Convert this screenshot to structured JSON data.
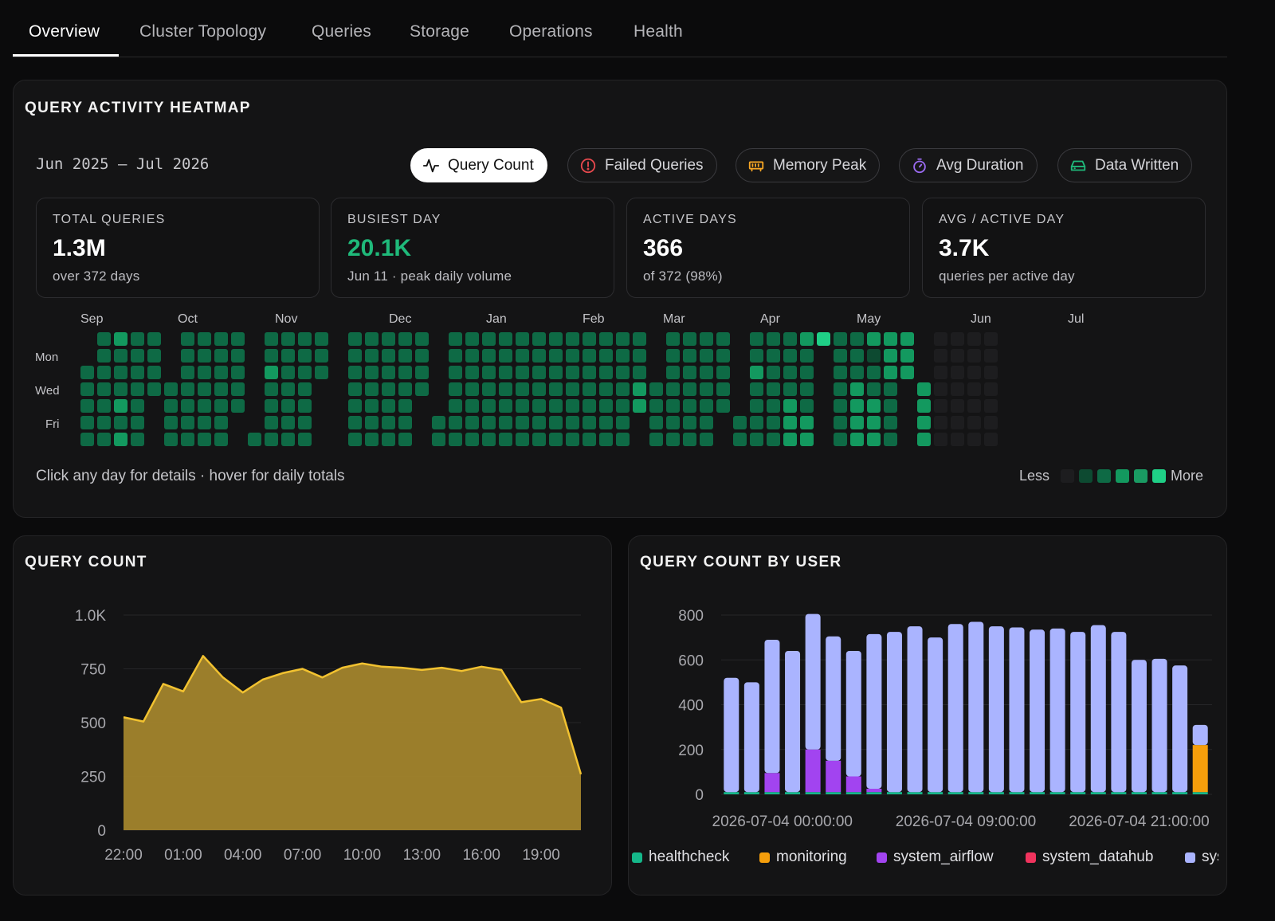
{
  "tabs": [
    "Overview",
    "Cluster Topology",
    "Queries",
    "Storage",
    "Operations",
    "Health"
  ],
  "heatmap_panel": {
    "title": "QUERY ACTIVITY HEATMAP",
    "range": "Jun 2025 – Jul 2026",
    "metrics": [
      {
        "label": "Query Count",
        "icon": "activity-icon",
        "active": true,
        "color": "#111111"
      },
      {
        "label": "Failed Queries",
        "icon": "alert-circle-icon",
        "active": false,
        "color": "#e5484d"
      },
      {
        "label": "Memory Peak",
        "icon": "memory-icon",
        "active": false,
        "color": "#f5a524"
      },
      {
        "label": "Avg Duration",
        "icon": "stopwatch-icon",
        "active": false,
        "color": "#9b6bf2"
      },
      {
        "label": "Data Written",
        "icon": "hard-drive-icon",
        "active": false,
        "color": "#1fb97a"
      }
    ],
    "stats": [
      {
        "label": "TOTAL QUERIES",
        "value": "1.3M",
        "sub": "over 372 days",
        "accent": false
      },
      {
        "label": "BUSIEST DAY",
        "value": "20.1K",
        "sub": "Jun 11 · peak daily volume",
        "accent": true
      },
      {
        "label": "ACTIVE DAYS",
        "value": "366",
        "sub": "of 372 (98%)",
        "accent": false
      },
      {
        "label": "AVG / ACTIVE DAY",
        "value": "3.7K",
        "sub": "queries per active day",
        "accent": false
      }
    ],
    "months": [
      "Sep",
      "Oct",
      "Nov",
      "Dec",
      "Jan",
      "Feb",
      "Mar",
      "Apr",
      "May",
      "Jun",
      "Jul"
    ],
    "day_labels": [
      "Mon",
      "Wed",
      "Fri"
    ],
    "hint": "Click any day for details · hover for daily totals",
    "legend_less": "Less",
    "legend_more": "More",
    "levels": [
      "#1d1d1f",
      "#0d4a31",
      "#0e6a45",
      "#13995f",
      "#1fcf86"
    ],
    "weeks": [
      [
        -1,
        -1,
        2,
        2,
        2,
        2,
        2
      ],
      [
        2,
        2,
        2,
        2,
        2,
        2,
        2
      ],
      [
        3,
        2,
        2,
        2,
        3,
        2,
        3
      ],
      [
        2,
        2,
        2,
        2,
        2,
        2,
        2
      ],
      [
        2,
        2,
        2,
        2,
        -1,
        -1,
        -1
      ],
      [
        -1,
        -1,
        -1,
        2,
        2,
        2,
        2
      ],
      [
        2,
        2,
        2,
        2,
        2,
        2,
        2
      ],
      [
        2,
        2,
        2,
        2,
        2,
        2,
        2
      ],
      [
        2,
        2,
        2,
        2,
        2,
        2,
        2
      ],
      [
        2,
        2,
        2,
        2,
        2,
        -1,
        -1
      ],
      [
        -1,
        -1,
        -1,
        -1,
        -1,
        -1,
        2
      ],
      [
        2,
        2,
        3,
        2,
        2,
        2,
        2
      ],
      [
        2,
        2,
        2,
        2,
        2,
        2,
        2
      ],
      [
        2,
        2,
        2,
        2,
        2,
        2,
        2
      ],
      [
        2,
        2,
        2,
        -1,
        -1,
        -1,
        -1
      ],
      [
        -1,
        -1,
        -1,
        -1,
        -1,
        -1,
        -1
      ],
      [
        2,
        2,
        2,
        2,
        2,
        2,
        2
      ],
      [
        2,
        2,
        2,
        2,
        2,
        2,
        2
      ],
      [
        2,
        2,
        2,
        2,
        2,
        2,
        2
      ],
      [
        2,
        2,
        2,
        2,
        2,
        2,
        2
      ],
      [
        2,
        2,
        2,
        2,
        -1,
        -1,
        -1
      ],
      [
        -1,
        -1,
        -1,
        -1,
        -1,
        2,
        2
      ],
      [
        2,
        2,
        2,
        2,
        2,
        2,
        2
      ],
      [
        2,
        2,
        2,
        2,
        2,
        2,
        2
      ],
      [
        2,
        2,
        2,
        2,
        2,
        2,
        2
      ],
      [
        2,
        2,
        2,
        2,
        2,
        2,
        2
      ],
      [
        2,
        2,
        2,
        2,
        2,
        2,
        2
      ],
      [
        2,
        2,
        2,
        2,
        2,
        2,
        2
      ],
      [
        2,
        2,
        2,
        2,
        2,
        2,
        2
      ],
      [
        2,
        2,
        2,
        2,
        2,
        2,
        2
      ],
      [
        2,
        2,
        2,
        2,
        2,
        2,
        2
      ],
      [
        2,
        2,
        2,
        2,
        2,
        2,
        2
      ],
      [
        2,
        2,
        2,
        2,
        2,
        2,
        2
      ],
      [
        2,
        2,
        2,
        3,
        3,
        -1,
        -1
      ],
      [
        -1,
        -1,
        -1,
        2,
        2,
        2,
        2
      ],
      [
        2,
        2,
        2,
        2,
        2,
        2,
        2
      ],
      [
        2,
        2,
        2,
        2,
        2,
        2,
        2
      ],
      [
        2,
        2,
        2,
        2,
        2,
        2,
        2
      ],
      [
        2,
        2,
        2,
        2,
        2,
        -1,
        -1
      ],
      [
        -1,
        -1,
        -1,
        -1,
        -1,
        2,
        2
      ],
      [
        2,
        2,
        3,
        2,
        2,
        2,
        2
      ],
      [
        2,
        2,
        2,
        2,
        2,
        2,
        2
      ],
      [
        2,
        2,
        2,
        2,
        3,
        3,
        3
      ],
      [
        3,
        2,
        2,
        2,
        2,
        3,
        3
      ],
      [
        4,
        -1,
        -1,
        -1,
        -1,
        -1,
        -1
      ],
      [
        2,
        2,
        2,
        2,
        2,
        2,
        2
      ],
      [
        2,
        2,
        2,
        3,
        3,
        3,
        3
      ],
      [
        3,
        1,
        2,
        2,
        3,
        3,
        3
      ],
      [
        3,
        3,
        3,
        2,
        2,
        2,
        2
      ],
      [
        3,
        3,
        3,
        -1,
        -1,
        -1,
        -1
      ],
      [
        -1,
        -1,
        -1,
        3,
        3,
        3,
        3
      ],
      [
        0,
        0,
        0,
        0,
        0,
        0,
        0
      ],
      [
        0,
        0,
        0,
        0,
        0,
        0,
        0
      ],
      [
        0,
        0,
        0,
        0,
        0,
        0,
        0
      ],
      [
        0,
        0,
        0,
        0,
        0,
        0,
        0
      ]
    ]
  },
  "query_count_panel": {
    "title": "QUERY COUNT",
    "chart_data": {
      "type": "area",
      "title": "QUERY COUNT",
      "x_ticks": [
        "22:00",
        "01:00",
        "04:00",
        "07:00",
        "10:00",
        "13:00",
        "16:00",
        "19:00"
      ],
      "y_ticks": [
        "0",
        "250",
        "500",
        "750",
        "1.0K"
      ],
      "ylim": [
        0,
        1000
      ],
      "x": [
        "22:00",
        "23:00",
        "00:00",
        "01:00",
        "02:00",
        "03:00",
        "04:00",
        "05:00",
        "06:00",
        "07:00",
        "08:00",
        "09:00",
        "10:00",
        "11:00",
        "12:00",
        "13:00",
        "14:00",
        "15:00",
        "16:00",
        "17:00",
        "18:00",
        "19:00",
        "20:00",
        "21:00"
      ],
      "values": [
        525,
        505,
        680,
        645,
        810,
        710,
        640,
        700,
        730,
        750,
        710,
        755,
        775,
        760,
        755,
        745,
        755,
        740,
        760,
        745,
        595,
        610,
        570,
        260
      ],
      "color": "#a2842c",
      "line_color": "#f2c230"
    }
  },
  "query_user_panel": {
    "title": "QUERY COUNT BY USER",
    "chart_data": {
      "type": "bar",
      "stacked": true,
      "title": "QUERY COUNT BY USER",
      "y_ticks": [
        "0",
        "200",
        "400",
        "600",
        "800"
      ],
      "ylim": [
        0,
        800
      ],
      "x_ticks": [
        "2026-07-04 00:00:00",
        "2026-07-04 09:00:00",
        "2026-07-04 21:00:00"
      ],
      "series": [
        {
          "name": "healthcheck",
          "color": "#15b88a",
          "values": [
            10,
            10,
            10,
            10,
            10,
            10,
            10,
            10,
            10,
            10,
            10,
            10,
            10,
            10,
            10,
            10,
            10,
            10,
            10,
            10,
            10,
            10,
            10,
            10
          ]
        },
        {
          "name": "monitoring",
          "color": "#f59e0b",
          "values": [
            0,
            0,
            0,
            0,
            0,
            0,
            0,
            0,
            0,
            0,
            0,
            0,
            0,
            0,
            0,
            0,
            0,
            0,
            0,
            0,
            0,
            0,
            0,
            210
          ]
        },
        {
          "name": "system_airflow",
          "color": "#a244f0",
          "values": [
            0,
            0,
            85,
            0,
            190,
            140,
            70,
            15,
            0,
            0,
            0,
            0,
            0,
            0,
            0,
            0,
            0,
            0,
            0,
            0,
            0,
            0,
            0,
            0
          ]
        },
        {
          "name": "system_datahub",
          "color": "#f0335d",
          "values": [
            0,
            0,
            0,
            0,
            0,
            0,
            0,
            0,
            0,
            0,
            0,
            0,
            0,
            0,
            0,
            0,
            0,
            0,
            0,
            0,
            0,
            0,
            0,
            0
          ]
        },
        {
          "name": "sys",
          "color": "#aab4ff",
          "values": [
            510,
            490,
            595,
            630,
            605,
            555,
            560,
            690,
            715,
            740,
            690,
            750,
            760,
            740,
            735,
            725,
            730,
            715,
            745,
            715,
            590,
            595,
            565,
            90
          ]
        }
      ]
    }
  }
}
